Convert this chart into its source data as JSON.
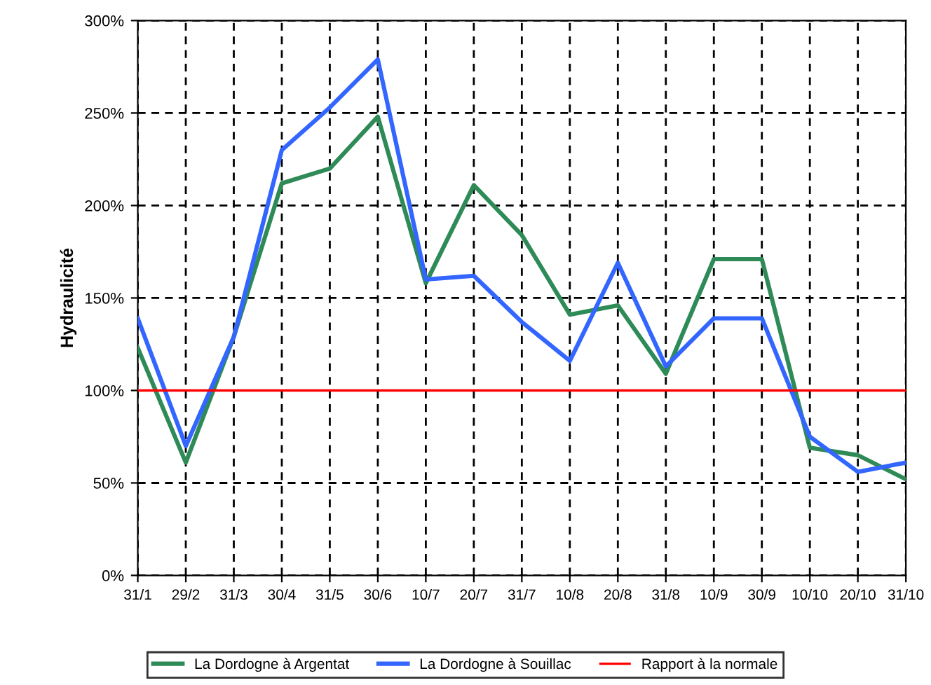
{
  "chart_data": {
    "type": "line",
    "ylabel": "Hydraulicité",
    "categories": [
      "31/1",
      "29/2",
      "31/3",
      "30/4",
      "31/5",
      "30/6",
      "10/7",
      "20/7",
      "31/7",
      "10/8",
      "20/8",
      "31/8",
      "10/9",
      "30/9",
      "10/10",
      "20/10",
      "31/10"
    ],
    "series": [
      {
        "name": "La Dordogne à Argentat",
        "color": "#2e8b57",
        "values": [
          123,
          61,
          129,
          212,
          220,
          248,
          158,
          211,
          184,
          141,
          146,
          109,
          171,
          171,
          69,
          65,
          52
        ]
      },
      {
        "name": "La Dordogne à Souillac",
        "color": "#3366ff",
        "values": [
          139,
          70,
          129,
          230,
          253,
          279,
          160,
          162,
          137,
          116,
          169,
          113,
          139,
          139,
          75,
          56,
          61
        ]
      },
      {
        "name": "Rapport à la normale",
        "color": "#ff0000",
        "values": [
          100,
          100,
          100,
          100,
          100,
          100,
          100,
          100,
          100,
          100,
          100,
          100,
          100,
          100,
          100,
          100,
          100
        ]
      }
    ],
    "ylim": [
      0,
      300
    ],
    "yticks": [
      {
        "value": 0,
        "label": "0%"
      },
      {
        "value": 50,
        "label": "50%"
      },
      {
        "value": 100,
        "label": "100%"
      },
      {
        "value": 150,
        "label": "150%"
      },
      {
        "value": 200,
        "label": "200%"
      },
      {
        "value": 250,
        "label": "250%"
      },
      {
        "value": 300,
        "label": "300%"
      }
    ],
    "grid": true,
    "legend": "bottom",
    "line_style": "solid",
    "marker": "none"
  }
}
